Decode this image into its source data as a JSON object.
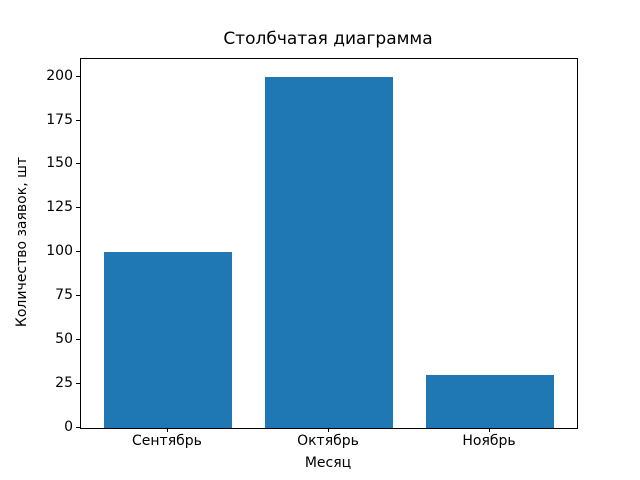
{
  "chart_data": {
    "type": "bar",
    "title": "Столбчатая диаграмма",
    "xlabel": "Месяц",
    "ylabel": "Количество заявок, шт",
    "categories": [
      "Сентябрь",
      "Октябрь",
      "Ноябрь"
    ],
    "values": [
      100,
      200,
      30
    ],
    "y_ticks": [
      0,
      25,
      50,
      75,
      100,
      125,
      150,
      175,
      200
    ],
    "ylim": [
      0,
      210
    ],
    "xlim": [
      -0.54,
      2.54
    ],
    "bar_width": 0.8,
    "bar_color": "#1f77b4",
    "background_color": "#ffffff",
    "spine_color": "#000000",
    "grid": false,
    "legend": "none"
  }
}
